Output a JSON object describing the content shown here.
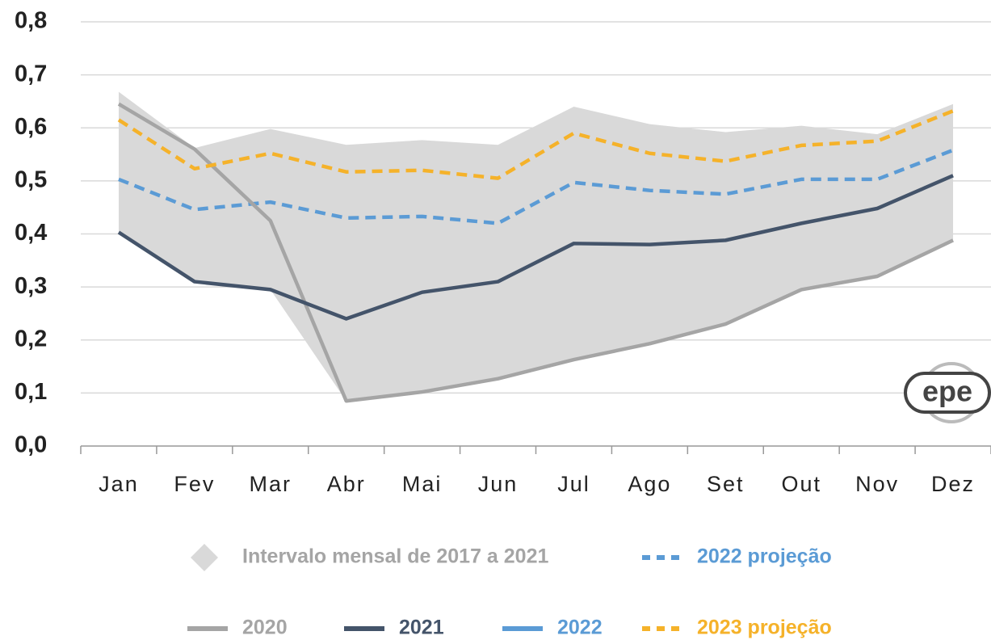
{
  "chart_data": {
    "type": "line",
    "categories": [
      "Jan",
      "Fev",
      "Mar",
      "Abr",
      "Mai",
      "Jun",
      "Jul",
      "Ago",
      "Set",
      "Out",
      "Nov",
      "Dez"
    ],
    "series": [
      {
        "name": "Intervalo mensal de 2017 a 2021",
        "color": "#d9d9d9",
        "kind": "range",
        "low": [
          0.403,
          0.31,
          0.295,
          0.085,
          0.102,
          0.127,
          0.163,
          0.193,
          0.23,
          0.295,
          0.32,
          0.388
        ],
        "high": [
          0.668,
          0.562,
          0.598,
          0.568,
          0.577,
          0.568,
          0.64,
          0.607,
          0.592,
          0.604,
          0.588,
          0.645
        ]
      },
      {
        "name": "2022 projeção",
        "color": "#5b9bd5",
        "dashed": true,
        "values": [
          0.503,
          0.446,
          0.46,
          0.43,
          0.433,
          0.42,
          0.497,
          0.482,
          0.475,
          0.503,
          0.503,
          0.558
        ]
      },
      {
        "name": "2020",
        "color": "#a5a5a5",
        "values": [
          0.645,
          0.56,
          0.425,
          0.085,
          0.102,
          0.127,
          0.163,
          0.193,
          0.23,
          0.295,
          0.32,
          0.388
        ]
      },
      {
        "name": "2021",
        "color": "#44546a",
        "values": [
          0.403,
          0.31,
          0.295,
          0.24,
          0.29,
          0.31,
          0.382,
          0.38,
          0.388,
          0.42,
          0.448,
          0.51
        ]
      },
      {
        "name": "2022",
        "color": "#5b9bd5",
        "values": [
          null,
          null,
          null,
          null,
          null,
          null,
          null,
          null,
          null,
          null,
          null,
          null
        ]
      },
      {
        "name": "2023 projeção",
        "color": "#f5b22a",
        "dashed": true,
        "values": [
          0.615,
          0.523,
          0.552,
          0.517,
          0.52,
          0.505,
          0.59,
          0.552,
          0.537,
          0.567,
          0.575,
          0.632
        ]
      }
    ],
    "ylim": [
      0,
      0.8
    ],
    "yticks": [
      {
        "value": 0,
        "label": "0,0"
      },
      {
        "value": 0.1,
        "label": "0,1"
      },
      {
        "value": 0.2,
        "label": "0,2"
      },
      {
        "value": 0.3,
        "label": "0,3"
      },
      {
        "value": 0.4,
        "label": "0,4"
      },
      {
        "value": 0.5,
        "label": "0,5"
      },
      {
        "value": 0.6,
        "label": "0,6"
      },
      {
        "value": 0.7,
        "label": "0,7"
      },
      {
        "value": 0.8,
        "label": "0,8"
      }
    ],
    "grid": true,
    "legend": "bottom",
    "logo": "epe"
  }
}
